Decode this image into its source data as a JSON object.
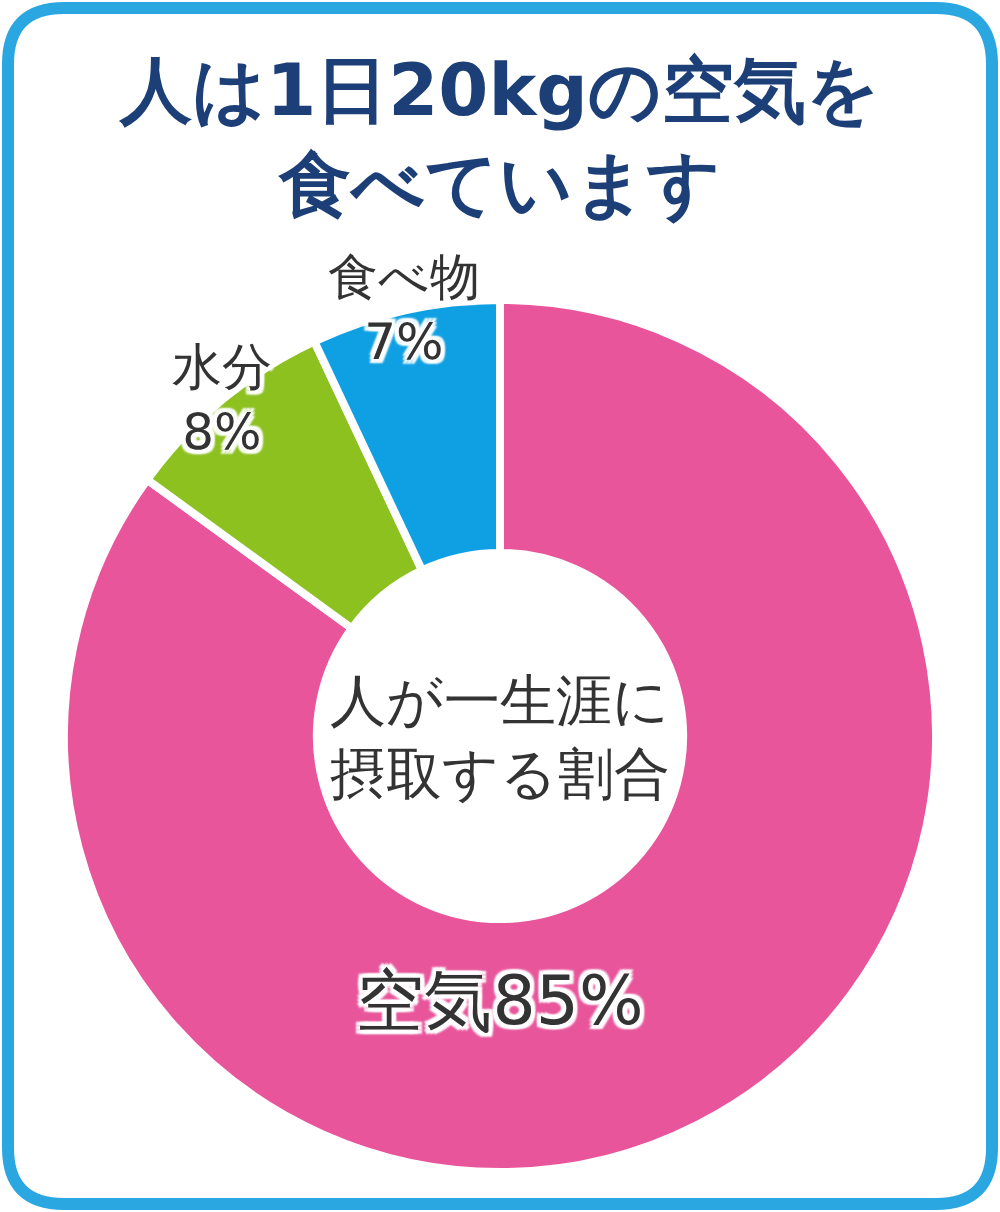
{
  "chart_data": {
    "type": "donut",
    "title": "人は1日20kgの空気を食べています",
    "annotations": [
      "人が一生涯に摂取する割合"
    ],
    "categories": [
      "空気",
      "水分",
      "食べ物"
    ],
    "values": [
      85,
      8,
      7
    ],
    "colors": [
      "#e8559b",
      "#8cc11f",
      "#0ea0e2"
    ],
    "value_labels": [
      "85%",
      "8%",
      "7%"
    ],
    "legend": false
  }
}
